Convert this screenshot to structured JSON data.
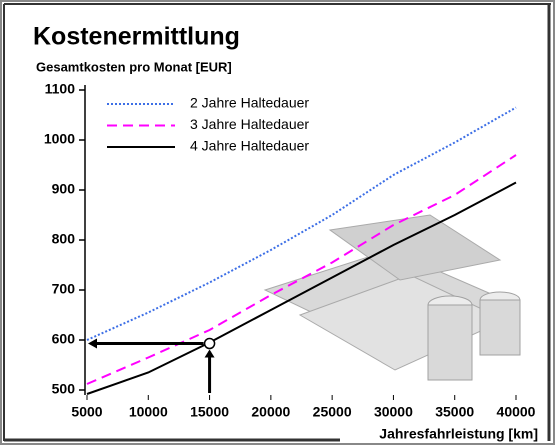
{
  "chart_data": {
    "type": "line",
    "title": "Kostenermittlung",
    "y_label": "Gesamtkosten pro Monat [EUR]",
    "x_label": "Jahresfahrleistung [km]",
    "x": [
      5000,
      10000,
      15000,
      20000,
      25000,
      30000,
      35000,
      40000
    ],
    "series": [
      {
        "name": "2 Jahre Haltedauer",
        "color": "#3d6fe6",
        "dash": "dotted",
        "values": [
          600,
          655,
          715,
          780,
          850,
          930,
          995,
          1065
        ]
      },
      {
        "name": "3 Jahre Haltedauer",
        "color": "#ff00ff",
        "dash": "dashed",
        "values": [
          512,
          565,
          620,
          690,
          755,
          830,
          890,
          970
        ]
      },
      {
        "name": "4 Jahre Haltedauer",
        "color": "#000000",
        "dash": "solid",
        "values": [
          492,
          535,
          595,
          660,
          725,
          790,
          850,
          915
        ]
      }
    ],
    "highlight_point": {
      "x": 15000,
      "y": 593
    },
    "xlim": [
      5000,
      40000
    ],
    "xticks": [
      5000,
      10000,
      15000,
      20000,
      25000,
      30000,
      35000,
      40000
    ],
    "ylim": [
      500,
      1100
    ],
    "yticks": [
      500,
      600,
      700,
      800,
      900,
      1000,
      1100
    ],
    "legend": "upper-left",
    "grid": false
  }
}
